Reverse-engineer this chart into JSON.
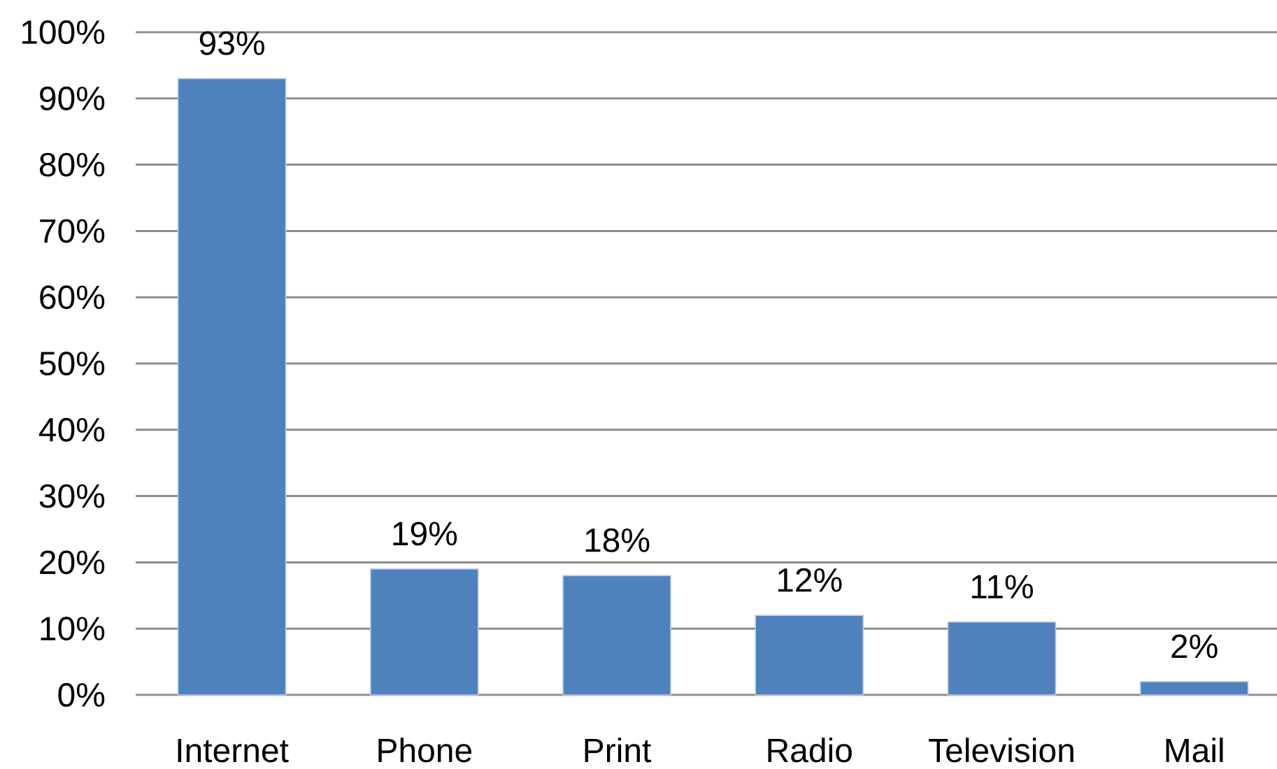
{
  "chart_data": {
    "type": "bar",
    "categories": [
      "Internet",
      "Phone",
      "Print",
      "Radio",
      "Television",
      "Mail"
    ],
    "values": [
      93,
      19,
      18,
      12,
      11,
      2
    ],
    "value_labels": [
      "93%",
      "19%",
      "18%",
      "12%",
      "11%",
      "2%"
    ],
    "color": "#4f81bd",
    "ylim": [
      0,
      100
    ],
    "yticks": [
      {
        "value": 0,
        "label": "0%"
      },
      {
        "value": 10,
        "label": "10%"
      },
      {
        "value": 20,
        "label": "20%"
      },
      {
        "value": 30,
        "label": "30%"
      },
      {
        "value": 40,
        "label": "40%"
      },
      {
        "value": 50,
        "label": "50%"
      },
      {
        "value": 60,
        "label": "60%"
      },
      {
        "value": 70,
        "label": "70%"
      },
      {
        "value": 80,
        "label": "80%"
      },
      {
        "value": 90,
        "label": "90%"
      },
      {
        "value": 100,
        "label": "100%"
      }
    ],
    "grid": "y"
  }
}
